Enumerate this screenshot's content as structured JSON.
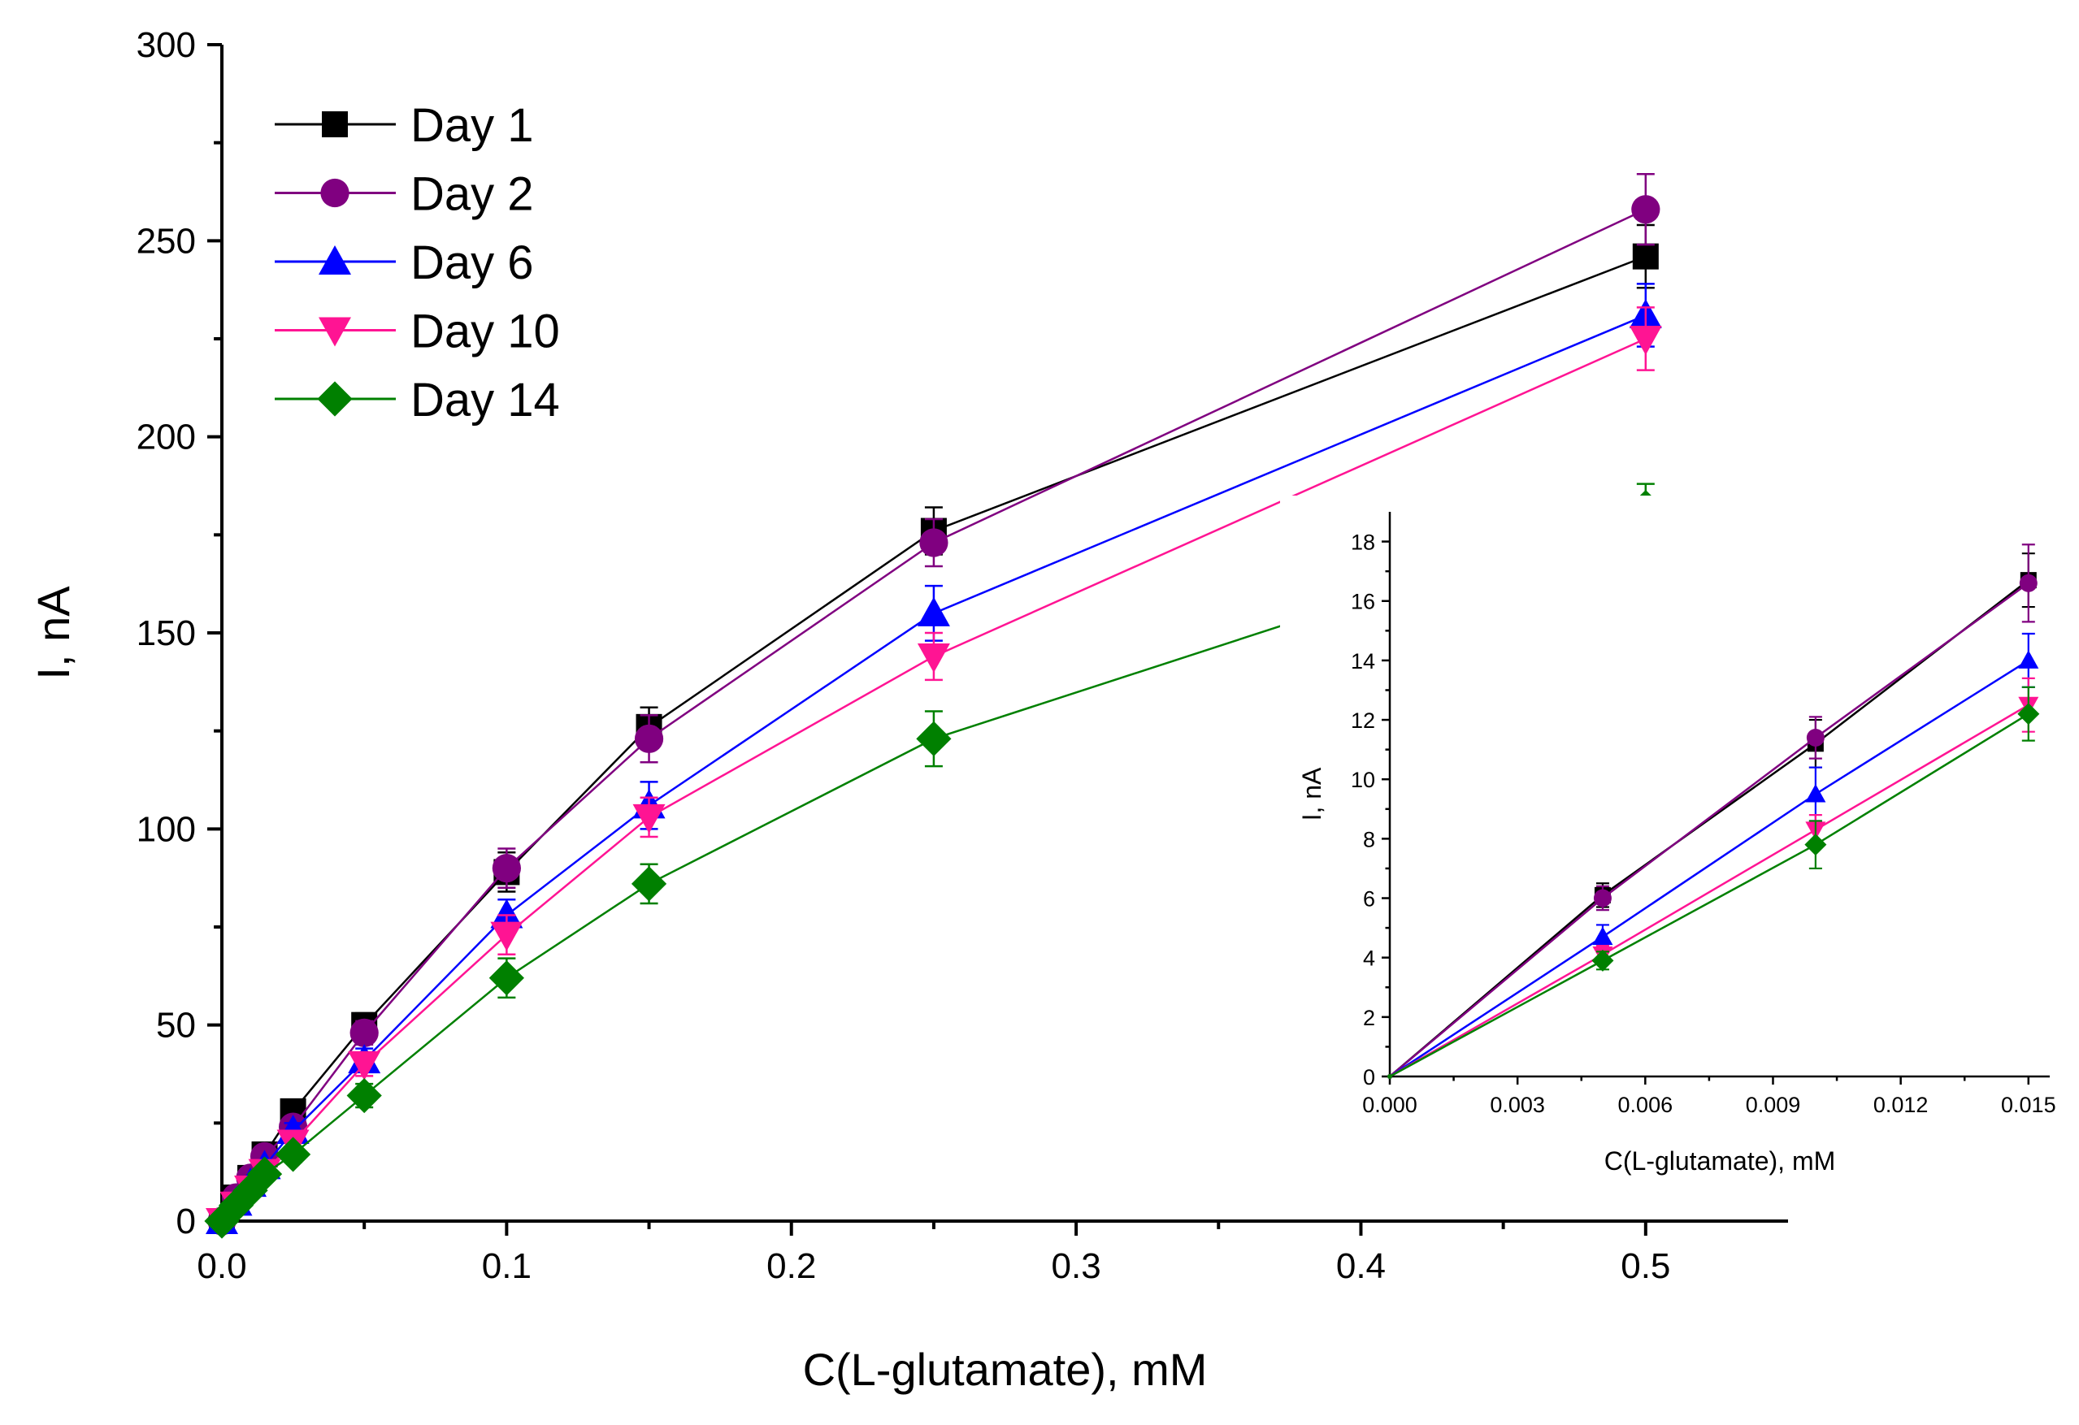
{
  "chart_data": [
    {
      "type": "line",
      "xlabel": "C(L-glutamate), mM",
      "ylabel": "I, nA",
      "xlim": [
        0,
        0.55
      ],
      "ylim": [
        0,
        300
      ],
      "xticks": [
        0.0,
        0.1,
        0.2,
        0.3,
        0.4,
        0.5
      ],
      "xtick_labels": [
        "0.0",
        "0.1",
        "0.2",
        "0.3",
        "0.4",
        "0.5"
      ],
      "yticks": [
        0,
        50,
        100,
        150,
        200,
        250,
        300
      ],
      "ytick_labels": [
        "0",
        "50",
        "100",
        "150",
        "200",
        "250",
        "300"
      ],
      "legend_position": "top-left",
      "x": [
        0,
        0.005,
        0.01,
        0.015,
        0.025,
        0.05,
        0.1,
        0.15,
        0.25,
        0.5
      ],
      "series": [
        {
          "name": "Day 1",
          "color": "#000000",
          "marker": "square",
          "values": [
            0,
            6,
            11,
            17,
            28,
            50,
            89,
            126,
            176,
            246
          ],
          "errors": [
            0.3,
            0.5,
            1,
            1.5,
            2,
            3,
            5,
            5,
            6,
            8
          ]
        },
        {
          "name": "Day 2",
          "color": "#800080",
          "marker": "circle",
          "values": [
            0,
            6,
            11,
            16.5,
            24,
            48,
            90,
            123,
            173,
            258
          ],
          "errors": [
            0.3,
            0.5,
            1,
            1.5,
            2,
            3,
            5,
            6,
            6,
            9
          ]
        },
        {
          "name": "Day 6",
          "color": "#0000ff",
          "marker": "triangle-up",
          "values": [
            0,
            4.7,
            9.5,
            14,
            23,
            41,
            78,
            106,
            155,
            231
          ],
          "errors": [
            0.3,
            0.5,
            1,
            1.5,
            2,
            3,
            4,
            6,
            7,
            8
          ]
        },
        {
          "name": "Day 10",
          "color": "#ff1493",
          "marker": "triangle-down",
          "values": [
            0,
            4.2,
            8.3,
            12.5,
            20,
            40,
            73,
            103,
            144,
            225
          ],
          "errors": [
            0.3,
            0.5,
            1,
            1.5,
            2,
            3,
            5,
            5,
            6,
            8
          ]
        },
        {
          "name": "Day 14",
          "color": "#008000",
          "marker": "diamond",
          "values": [
            0,
            4,
            7.8,
            12,
            17,
            32,
            62,
            86,
            123,
            182
          ],
          "errors": [
            0.3,
            0.5,
            1,
            1.5,
            2,
            3,
            5,
            5,
            7,
            6
          ]
        }
      ]
    },
    {
      "type": "line",
      "role": "inset",
      "legend_position": "none",
      "xlabel": "C(L-glutamate), mM",
      "ylabel": "I, nA",
      "xlim": [
        0,
        0.0155
      ],
      "ylim": [
        0,
        19
      ],
      "xticks": [
        0,
        0.003,
        0.006,
        0.009,
        0.012,
        0.015
      ],
      "xtick_labels": [
        "0.000",
        "0.003",
        "0.006",
        "0.009",
        "0.012",
        "0.015"
      ],
      "yticks": [
        0,
        2,
        4,
        6,
        8,
        10,
        12,
        14,
        16,
        18
      ],
      "ytick_labels": [
        "0",
        "2",
        "4",
        "6",
        "8",
        "10",
        "12",
        "14",
        "16",
        "18"
      ],
      "x": [
        0,
        0.005,
        0.01,
        0.015
      ],
      "series": [
        {
          "name": "Day 1",
          "color": "#000000",
          "marker": "square",
          "values": [
            0,
            6.1,
            11.2,
            16.7
          ],
          "errors": [
            0,
            0.4,
            0.8,
            0.9
          ]
        },
        {
          "name": "Day 2",
          "color": "#800080",
          "marker": "circle",
          "values": [
            0,
            6.0,
            11.4,
            16.6
          ],
          "errors": [
            0,
            0.4,
            0.7,
            1.3
          ]
        },
        {
          "name": "Day 6",
          "color": "#0000ff",
          "marker": "triangle-up",
          "values": [
            0,
            4.7,
            9.5,
            14.0
          ],
          "errors": [
            0,
            0.4,
            0.9,
            0.9
          ]
        },
        {
          "name": "Day 10",
          "color": "#ff1493",
          "marker": "triangle-down",
          "values": [
            0,
            4.1,
            8.3,
            12.5
          ],
          "errors": [
            0,
            0.3,
            0.5,
            0.9
          ]
        },
        {
          "name": "Day 14",
          "color": "#008000",
          "marker": "diamond",
          "values": [
            0,
            3.9,
            7.8,
            12.2
          ],
          "errors": [
            0,
            0.3,
            0.8,
            0.9
          ]
        }
      ]
    }
  ]
}
